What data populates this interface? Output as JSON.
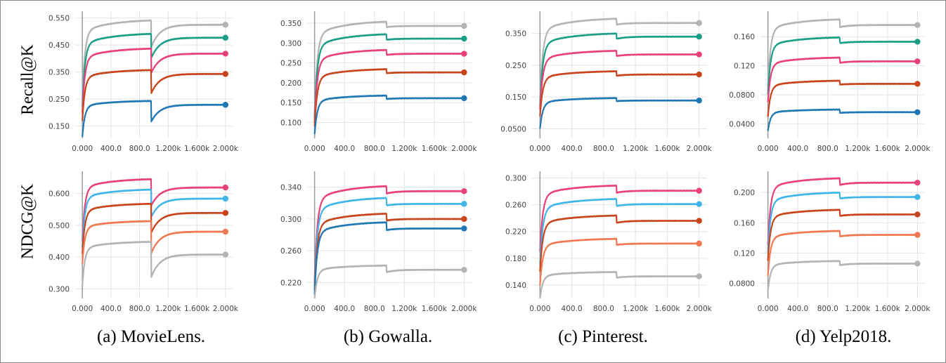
{
  "row_labels": [
    "Recall@K",
    "NDCG@K"
  ],
  "captions": [
    "(a) MovieLens.",
    "(b) Gowalla.",
    "(c) Pinterest.",
    "(d) Yelp2018."
  ],
  "chart_data": [
    {
      "type": "line",
      "row": "Recall@K",
      "dataset": "(a) MovieLens.",
      "x_ticks": [
        "0.000",
        "400.0",
        "800.0",
        "1.200k",
        "1.600k",
        "2.000k"
      ],
      "y_ticks": [
        "0.550",
        "0.450",
        "0.350",
        "0.250",
        "0.150"
      ],
      "ylim": [
        0.105,
        0.575
      ],
      "series": [
        {
          "color": "#b3b3b3",
          "start": 0.25,
          "plateau1": 0.545,
          "dip": 0.44,
          "final": 0.525
        },
        {
          "color": "#1a9e86",
          "start": 0.22,
          "plateau1": 0.495,
          "dip": 0.4,
          "final": 0.477
        },
        {
          "color": "#e8407a",
          "start": 0.2,
          "plateau1": 0.44,
          "dip": 0.345,
          "final": 0.418
        },
        {
          "color": "#c8441c",
          "start": 0.17,
          "plateau1": 0.36,
          "dip": 0.27,
          "final": 0.343
        },
        {
          "color": "#1f77b4",
          "start": 0.11,
          "plateau1": 0.245,
          "dip": 0.165,
          "final": 0.229
        }
      ]
    },
    {
      "type": "line",
      "row": "Recall@K",
      "dataset": "(b) Gowalla.",
      "x_ticks": [
        "0.000",
        "400.0",
        "800.0",
        "1.200k",
        "1.600k",
        "2.000k"
      ],
      "y_ticks": [
        "0.350",
        "0.300",
        "0.250",
        "0.200",
        "0.150",
        "0.100"
      ],
      "ylim": [
        0.06,
        0.38
      ],
      "series": [
        {
          "color": "#b3b3b3",
          "start": 0.12,
          "plateau1": 0.357,
          "dip": 0.34,
          "final": 0.343
        },
        {
          "color": "#1a9e86",
          "start": 0.11,
          "plateau1": 0.325,
          "dip": 0.308,
          "final": 0.311
        },
        {
          "color": "#e8407a",
          "start": 0.1,
          "plateau1": 0.285,
          "dip": 0.27,
          "final": 0.273
        },
        {
          "color": "#c8441c",
          "start": 0.09,
          "plateau1": 0.236,
          "dip": 0.224,
          "final": 0.226
        },
        {
          "color": "#1f77b4",
          "start": 0.07,
          "plateau1": 0.169,
          "dip": 0.159,
          "final": 0.161
        }
      ]
    },
    {
      "type": "line",
      "row": "Recall@K",
      "dataset": "(c) Pinterest.",
      "x_ticks": [
        "0.000",
        "400.0",
        "800.0",
        "1.200k",
        "1.600k",
        "2.000k"
      ],
      "y_ticks": [
        "0.350",
        "0.250",
        "0.150",
        "0.0500"
      ],
      "ylim": [
        0.02,
        0.42
      ],
      "series": [
        {
          "color": "#b3b3b3",
          "start": 0.14,
          "plateau1": 0.4,
          "dip": 0.378,
          "final": 0.383
        },
        {
          "color": "#1a9e86",
          "start": 0.12,
          "plateau1": 0.353,
          "dip": 0.333,
          "final": 0.34
        },
        {
          "color": "#e8407a",
          "start": 0.11,
          "plateau1": 0.298,
          "dip": 0.279,
          "final": 0.284
        },
        {
          "color": "#c8441c",
          "start": 0.09,
          "plateau1": 0.233,
          "dip": 0.217,
          "final": 0.221
        },
        {
          "color": "#1f77b4",
          "start": 0.05,
          "plateau1": 0.148,
          "dip": 0.137,
          "final": 0.139
        }
      ]
    },
    {
      "type": "line",
      "row": "Recall@K",
      "dataset": "(d) Yelp2018.",
      "x_ticks": [
        "0.000",
        "400.0",
        "800.0",
        "1.200k",
        "1.600k",
        "2.000k"
      ],
      "y_ticks": [
        "0.160",
        "0.120",
        "0.0800",
        "0.0400"
      ],
      "ylim": [
        0.02,
        0.195
      ],
      "series": [
        {
          "color": "#b3b3b3",
          "start": 0.09,
          "plateau1": 0.185,
          "dip": 0.173,
          "final": 0.176
        },
        {
          "color": "#1a9e86",
          "start": 0.08,
          "plateau1": 0.16,
          "dip": 0.151,
          "final": 0.153
        },
        {
          "color": "#e8407a",
          "start": 0.07,
          "plateau1": 0.132,
          "dip": 0.124,
          "final": 0.126
        },
        {
          "color": "#c8441c",
          "start": 0.05,
          "plateau1": 0.1,
          "dip": 0.094,
          "final": 0.095
        },
        {
          "color": "#1f77b4",
          "start": 0.03,
          "plateau1": 0.06,
          "dip": 0.055,
          "final": 0.056
        }
      ]
    },
    {
      "type": "line",
      "row": "NDCG@K",
      "dataset": "(a) MovieLens.",
      "x_ticks": [
        "0.000",
        "400.0",
        "800.0",
        "1.200k",
        "1.600k",
        "2.000k"
      ],
      "y_ticks": [
        "0.600",
        "0.500",
        "0.400",
        "0.300"
      ],
      "ylim": [
        0.27,
        0.67
      ],
      "series": [
        {
          "color": "#e8407a",
          "start": 0.45,
          "plateau1": 0.648,
          "dip": 0.56,
          "final": 0.619
        },
        {
          "color": "#3fb5e8",
          "start": 0.43,
          "plateau1": 0.615,
          "dip": 0.525,
          "final": 0.584
        },
        {
          "color": "#c8441c",
          "start": 0.41,
          "plateau1": 0.57,
          "dip": 0.475,
          "final": 0.539
        },
        {
          "color": "#f07850",
          "start": 0.38,
          "plateau1": 0.515,
          "dip": 0.41,
          "final": 0.48
        },
        {
          "color": "#b3b3b3",
          "start": 0.31,
          "plateau1": 0.45,
          "dip": 0.335,
          "final": 0.408
        }
      ]
    },
    {
      "type": "line",
      "row": "NDCG@K",
      "dataset": "(b) Gowalla.",
      "x_ticks": [
        "0.000",
        "400.0",
        "800.0",
        "1.200k",
        "1.600k",
        "2.000k"
      ],
      "y_ticks": [
        "0.340",
        "0.300",
        "0.260",
        "0.220"
      ],
      "ylim": [
        0.2,
        0.36
      ],
      "series": [
        {
          "color": "#e8407a",
          "start": 0.22,
          "plateau1": 0.343,
          "dip": 0.332,
          "final": 0.335
        },
        {
          "color": "#3fb5e8",
          "start": 0.215,
          "plateau1": 0.328,
          "dip": 0.317,
          "final": 0.319
        },
        {
          "color": "#c8441c",
          "start": 0.21,
          "plateau1": 0.308,
          "dip": 0.298,
          "final": 0.3
        },
        {
          "color": "#1f77b4",
          "start": 0.205,
          "plateau1": 0.297,
          "dip": 0.286,
          "final": 0.288
        },
        {
          "color": "#b3b3b3",
          "start": 0.2,
          "plateau1": 0.242,
          "dip": 0.233,
          "final": 0.236
        }
      ]
    },
    {
      "type": "line",
      "row": "NDCG@K",
      "dataset": "(c) Pinterest.",
      "x_ticks": [
        "0.000",
        "400.0",
        "800.0",
        "1.200k",
        "1.600k",
        "2.000k"
      ],
      "y_ticks": [
        "0.300",
        "0.260",
        "0.220",
        "0.180",
        "0.140"
      ],
      "ylim": [
        0.12,
        0.31
      ],
      "series": [
        {
          "color": "#e8407a",
          "start": 0.19,
          "plateau1": 0.29,
          "dip": 0.278,
          "final": 0.281
        },
        {
          "color": "#3fb5e8",
          "start": 0.17,
          "plateau1": 0.27,
          "dip": 0.258,
          "final": 0.261
        },
        {
          "color": "#c8441c",
          "start": 0.16,
          "plateau1": 0.245,
          "dip": 0.233,
          "final": 0.236
        },
        {
          "color": "#f07850",
          "start": 0.14,
          "plateau1": 0.21,
          "dip": 0.2,
          "final": 0.202
        },
        {
          "color": "#b3b3b3",
          "start": 0.12,
          "plateau1": 0.16,
          "dip": 0.151,
          "final": 0.153
        }
      ]
    },
    {
      "type": "line",
      "row": "NDCG@K",
      "dataset": "(d) Yelp2018.",
      "x_ticks": [
        "0.000",
        "400.0",
        "800.0",
        "1.200k",
        "1.600k",
        "2.000k"
      ],
      "y_ticks": [
        "0.200",
        "0.160",
        "0.120",
        "0.0800"
      ],
      "ylim": [
        0.06,
        0.228
      ],
      "series": [
        {
          "color": "#e8407a",
          "start": 0.13,
          "plateau1": 0.22,
          "dip": 0.21,
          "final": 0.213
        },
        {
          "color": "#3fb5e8",
          "start": 0.12,
          "plateau1": 0.201,
          "dip": 0.192,
          "final": 0.194
        },
        {
          "color": "#c8441c",
          "start": 0.11,
          "plateau1": 0.178,
          "dip": 0.169,
          "final": 0.171
        },
        {
          "color": "#f07850",
          "start": 0.09,
          "plateau1": 0.15,
          "dip": 0.142,
          "final": 0.144
        },
        {
          "color": "#b3b3b3",
          "start": 0.07,
          "plateau1": 0.11,
          "dip": 0.104,
          "final": 0.106
        }
      ]
    }
  ]
}
